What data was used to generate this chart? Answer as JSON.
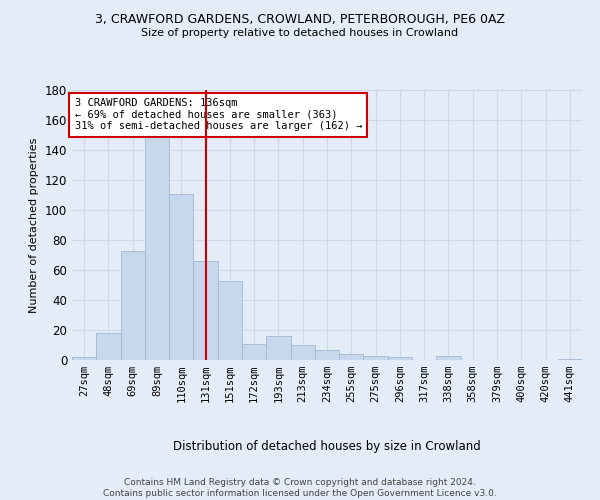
{
  "title_line1": "3, CRAWFORD GARDENS, CROWLAND, PETERBOROUGH, PE6 0AZ",
  "title_line2": "Size of property relative to detached houses in Crowland",
  "xlabel": "Distribution of detached houses by size in Crowland",
  "ylabel": "Number of detached properties",
  "footer_line1": "Contains HM Land Registry data © Crown copyright and database right 2024.",
  "footer_line2": "Contains public sector information licensed under the Open Government Licence v3.0.",
  "bar_labels": [
    "27sqm",
    "48sqm",
    "69sqm",
    "89sqm",
    "110sqm",
    "131sqm",
    "151sqm",
    "172sqm",
    "193sqm",
    "213sqm",
    "234sqm",
    "255sqm",
    "275sqm",
    "296sqm",
    "317sqm",
    "338sqm",
    "358sqm",
    "379sqm",
    "400sqm",
    "420sqm",
    "441sqm"
  ],
  "bar_values": [
    2,
    18,
    73,
    150,
    111,
    66,
    53,
    11,
    16,
    10,
    7,
    4,
    3,
    2,
    0,
    3,
    0,
    0,
    0,
    0,
    1
  ],
  "bar_color": "#c8d8ec",
  "bar_edge_color": "#9ab0cc",
  "grid_color": "#cdd8ea",
  "background_color": "#e4ecf7",
  "annotation_text": "3 CRAWFORD GARDENS: 136sqm\n← 69% of detached houses are smaller (363)\n31% of semi-detached houses are larger (162) →",
  "annotation_box_color": "#ffffff",
  "annotation_box_edge_color": "#cc0000",
  "vline_x": 5.0,
  "vline_color": "#cc0000",
  "ylim": [
    0,
    180
  ],
  "yticks": [
    0,
    20,
    40,
    60,
    80,
    100,
    120,
    140,
    160,
    180
  ]
}
